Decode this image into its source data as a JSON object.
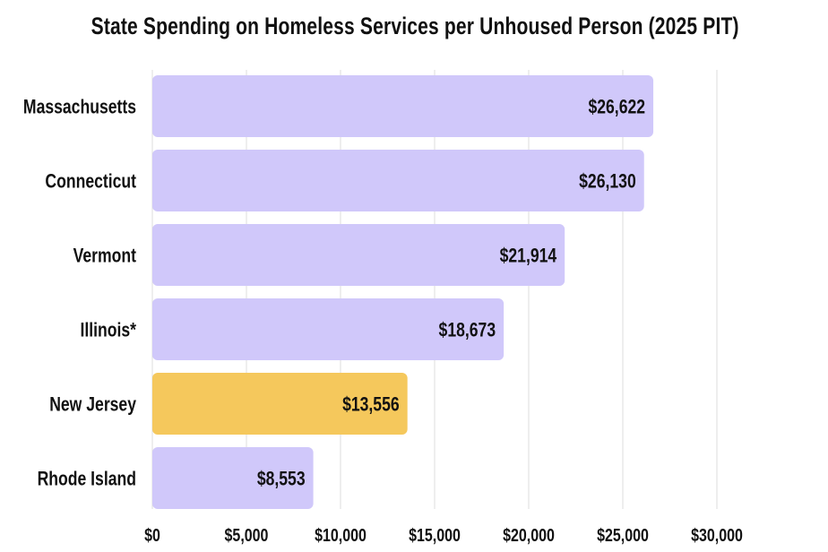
{
  "chart_data": {
    "type": "bar",
    "orientation": "horizontal",
    "title": "State Spending on Homeless Services per Unhoused Person (2025 PIT)",
    "categories": [
      "Massachusetts",
      "Connecticut",
      "Vermont",
      "Illinois*",
      "New Jersey",
      "Rhode Island"
    ],
    "values": [
      26622,
      26130,
      21914,
      18673,
      13556,
      8553
    ],
    "data_labels": [
      "$26,622",
      "$26,130",
      "$21,914",
      "$18,673",
      "$13,556",
      "$8,553"
    ],
    "highlight": "New Jersey",
    "xlim": [
      0,
      30000
    ],
    "x_ticks": [
      0,
      5000,
      10000,
      15000,
      20000,
      25000,
      30000
    ],
    "x_tick_labels": [
      "$0",
      "$5,000",
      "$10,000",
      "$15,000",
      "$20,000",
      "$25,000",
      "$30,000"
    ],
    "grid": "vertical",
    "legend": "none",
    "colors": {
      "bar": "#d0c8fa",
      "highlight": "#f5c85c",
      "grid": "#dcdcdc"
    }
  }
}
